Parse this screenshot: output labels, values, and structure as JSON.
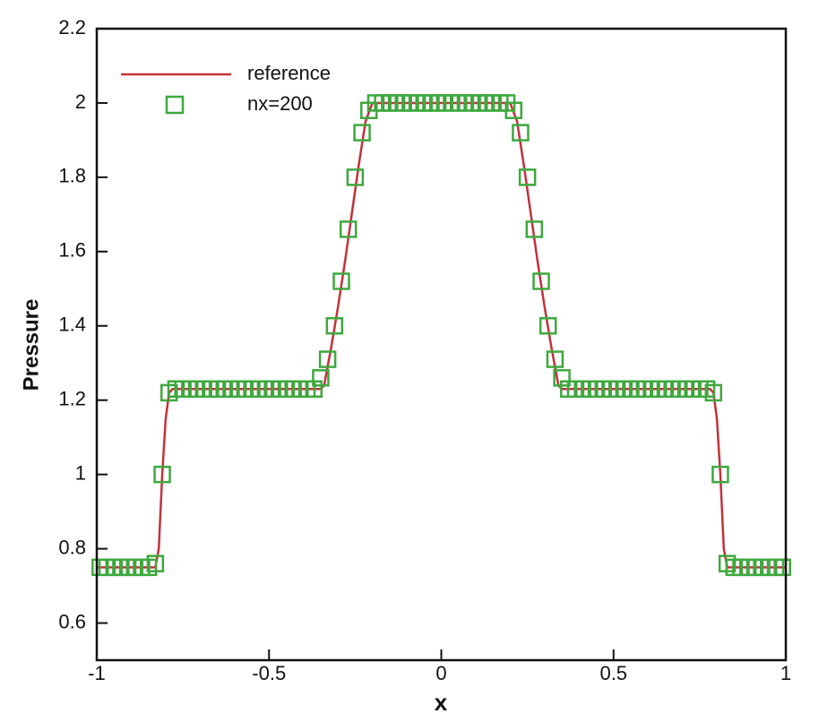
{
  "chart_data": {
    "type": "line",
    "xlabel": "x",
    "ylabel": "Pressure",
    "xlim": [
      -1,
      1
    ],
    "ylim": [
      0.5,
      2.2
    ],
    "xticks": [
      -1,
      -0.5,
      0,
      0.5,
      1
    ],
    "yticks": [
      0.6,
      0.8,
      1,
      1.2,
      1.4,
      1.6,
      1.8,
      2,
      2.2
    ],
    "legend": "upper left",
    "series": [
      {
        "name": "reference",
        "type": "line",
        "color": "#c1323b",
        "x": [
          -1,
          -0.83,
          -0.82,
          -0.81,
          -0.8,
          -0.79,
          -0.78,
          -0.35,
          -0.34,
          -0.32,
          -0.3,
          -0.28,
          -0.26,
          -0.24,
          -0.22,
          -0.2,
          0.2,
          0.22,
          0.24,
          0.26,
          0.28,
          0.3,
          0.32,
          0.34,
          0.35,
          0.78,
          0.79,
          0.8,
          0.81,
          0.82,
          0.83,
          1
        ],
        "values": [
          0.75,
          0.75,
          0.8,
          1.0,
          1.15,
          1.22,
          1.23,
          1.23,
          1.24,
          1.34,
          1.45,
          1.57,
          1.7,
          1.83,
          1.95,
          2.0,
          2.0,
          1.95,
          1.83,
          1.7,
          1.57,
          1.45,
          1.34,
          1.24,
          1.23,
          1.23,
          1.22,
          1.15,
          1.0,
          0.8,
          0.75,
          0.75
        ]
      },
      {
        "name": "nx=200",
        "type": "scatter",
        "color": "#3ea83e",
        "x": [
          -0.99,
          -0.97,
          -0.95,
          -0.93,
          -0.91,
          -0.89,
          -0.87,
          -0.85,
          -0.83,
          -0.81,
          -0.79,
          -0.77,
          -0.75,
          -0.73,
          -0.71,
          -0.69,
          -0.67,
          -0.65,
          -0.63,
          -0.61,
          -0.59,
          -0.57,
          -0.55,
          -0.53,
          -0.51,
          -0.49,
          -0.47,
          -0.45,
          -0.43,
          -0.41,
          -0.39,
          -0.37,
          -0.35,
          -0.33,
          -0.31,
          -0.29,
          -0.27,
          -0.25,
          -0.23,
          -0.21,
          -0.19,
          -0.17,
          -0.15,
          -0.13,
          -0.11,
          -0.09,
          -0.07,
          -0.05,
          -0.03,
          -0.01,
          0.01,
          0.03,
          0.05,
          0.07,
          0.09,
          0.11,
          0.13,
          0.15,
          0.17,
          0.19,
          0.21,
          0.23,
          0.25,
          0.27,
          0.29,
          0.31,
          0.33,
          0.35,
          0.37,
          0.39,
          0.41,
          0.43,
          0.45,
          0.47,
          0.49,
          0.51,
          0.53,
          0.55,
          0.57,
          0.59,
          0.61,
          0.63,
          0.65,
          0.67,
          0.69,
          0.71,
          0.73,
          0.75,
          0.77,
          0.79,
          0.81,
          0.83,
          0.85,
          0.87,
          0.89,
          0.91,
          0.93,
          0.95,
          0.97,
          0.99
        ],
        "values": [
          0.75,
          0.75,
          0.75,
          0.75,
          0.75,
          0.75,
          0.75,
          0.75,
          0.76,
          1.0,
          1.22,
          1.23,
          1.23,
          1.23,
          1.23,
          1.23,
          1.23,
          1.23,
          1.23,
          1.23,
          1.23,
          1.23,
          1.23,
          1.23,
          1.23,
          1.23,
          1.23,
          1.23,
          1.23,
          1.23,
          1.23,
          1.23,
          1.26,
          1.31,
          1.4,
          1.52,
          1.66,
          1.8,
          1.92,
          1.98,
          2.0,
          2.0,
          2.0,
          2.0,
          2.0,
          2.0,
          2.0,
          2.0,
          2.0,
          2.0,
          2.0,
          2.0,
          2.0,
          2.0,
          2.0,
          2.0,
          2.0,
          2.0,
          2.0,
          2.0,
          1.98,
          1.92,
          1.8,
          1.66,
          1.52,
          1.4,
          1.31,
          1.26,
          1.23,
          1.23,
          1.23,
          1.23,
          1.23,
          1.23,
          1.23,
          1.23,
          1.23,
          1.23,
          1.23,
          1.23,
          1.23,
          1.23,
          1.23,
          1.23,
          1.23,
          1.23,
          1.23,
          1.23,
          1.23,
          1.22,
          1.0,
          0.76,
          0.75,
          0.75,
          0.75,
          0.75,
          0.75,
          0.75,
          0.75,
          0.75
        ]
      }
    ]
  }
}
